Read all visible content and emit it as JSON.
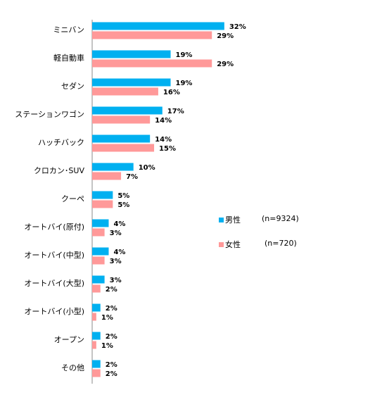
{
  "chart_data": {
    "type": "bar",
    "orientation": "horizontal",
    "categories": [
      "ミニバン",
      "軽自動車",
      "セダン",
      "ステーションワゴン",
      "ハッチバック",
      "クロカン･SUV",
      "クーペ",
      "オートバイ(原付)",
      "オートバイ(中型)",
      "オートバイ(大型)",
      "オートバイ(小型)",
      "オープン",
      "その他"
    ],
    "series": [
      {
        "name": "男性",
        "n_label": "(n=9324)",
        "color": "#00b0f0",
        "values": [
          32,
          19,
          19,
          17,
          14,
          10,
          5,
          4,
          4,
          3,
          2,
          2,
          2
        ],
        "value_labels": [
          "32%",
          "19%",
          "19%",
          "17%",
          "14%",
          "10%",
          "5%",
          "4%",
          "4%",
          "3%",
          "2%",
          "2%",
          "2%"
        ]
      },
      {
        "name": "女性",
        "n_label": "(n=720)",
        "color": "#ff9999",
        "values": [
          29,
          29,
          16,
          14,
          15,
          7,
          5,
          3,
          3,
          2,
          1,
          1,
          2
        ],
        "value_labels": [
          "29%",
          "29%",
          "16%",
          "14%",
          "15%",
          "7%",
          "5%",
          "3%",
          "3%",
          "2%",
          "1%",
          "1%",
          "2%"
        ]
      }
    ]
  }
}
